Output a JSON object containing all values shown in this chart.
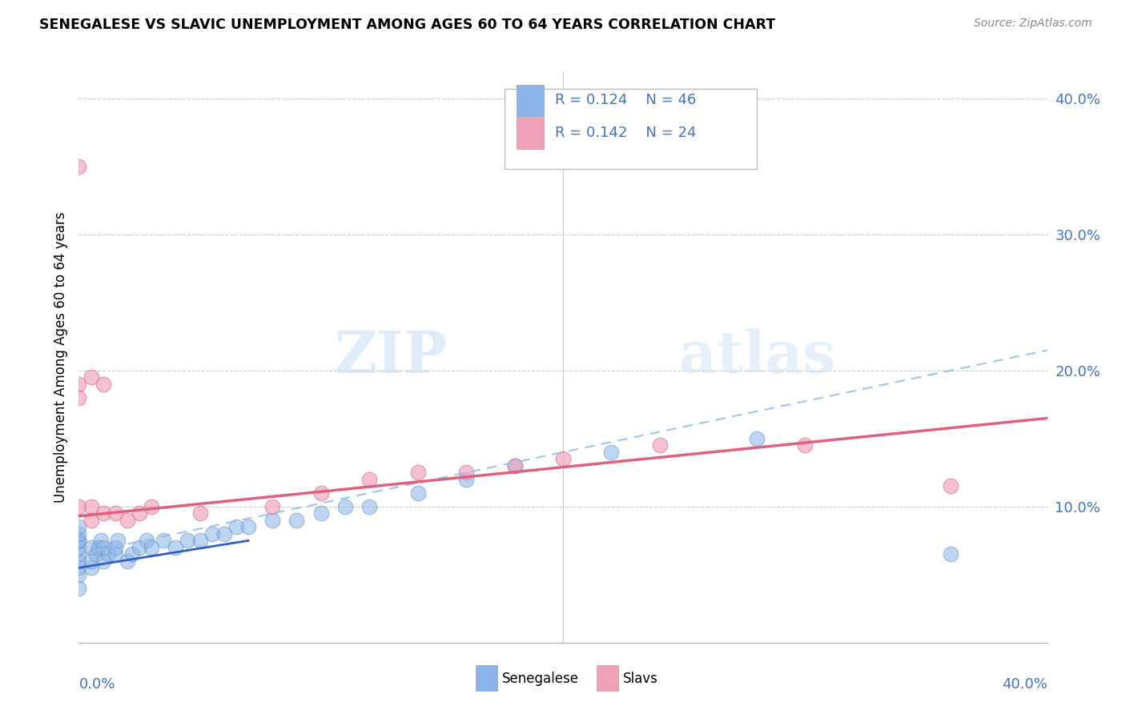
{
  "title": "SENEGALESE VS SLAVIC UNEMPLOYMENT AMONG AGES 60 TO 64 YEARS CORRELATION CHART",
  "source": "Source: ZipAtlas.com",
  "ylabel": "Unemployment Among Ages 60 to 64 years",
  "ytick_vals": [
    0.1,
    0.2,
    0.3,
    0.4
  ],
  "xlim": [
    0.0,
    0.4
  ],
  "ylim": [
    0.0,
    0.42
  ],
  "color_senegalese": "#8ab4e8",
  "color_slavs": "#f0a0b8",
  "color_line_senegalese_dashed": "#90c0e8",
  "color_line_slavs_solid": "#e06080",
  "color_line_senegalese_solid": "#3060c0",
  "color_text_blue": "#4472c4",
  "watermark_zip": "ZIP",
  "watermark_atlas": "atlas",
  "senegalese_x": [
    0.0,
    0.0,
    0.0,
    0.0,
    0.0,
    0.0,
    0.0,
    0.0,
    0.0,
    0.0,
    0.005,
    0.005,
    0.005,
    0.007,
    0.008,
    0.009,
    0.01,
    0.01,
    0.012,
    0.015,
    0.015,
    0.016,
    0.02,
    0.022,
    0.025,
    0.028,
    0.03,
    0.035,
    0.04,
    0.045,
    0.05,
    0.055,
    0.06,
    0.065,
    0.07,
    0.08,
    0.09,
    0.1,
    0.11,
    0.12,
    0.14,
    0.16,
    0.18,
    0.22,
    0.28,
    0.36
  ],
  "senegalese_y": [
    0.04,
    0.05,
    0.055,
    0.06,
    0.065,
    0.07,
    0.075,
    0.075,
    0.08,
    0.085,
    0.055,
    0.06,
    0.07,
    0.065,
    0.07,
    0.075,
    0.06,
    0.07,
    0.065,
    0.065,
    0.07,
    0.075,
    0.06,
    0.065,
    0.07,
    0.075,
    0.07,
    0.075,
    0.07,
    0.075,
    0.075,
    0.08,
    0.08,
    0.085,
    0.085,
    0.09,
    0.09,
    0.095,
    0.1,
    0.1,
    0.11,
    0.12,
    0.13,
    0.14,
    0.15,
    0.065
  ],
  "slavs_x": [
    0.0,
    0.0,
    0.0,
    0.0,
    0.005,
    0.005,
    0.01,
    0.015,
    0.02,
    0.025,
    0.03,
    0.05,
    0.08,
    0.1,
    0.12,
    0.14,
    0.16,
    0.18,
    0.2,
    0.24,
    0.3,
    0.36,
    0.005,
    0.01
  ],
  "slavs_y": [
    0.35,
    0.19,
    0.18,
    0.1,
    0.1,
    0.09,
    0.095,
    0.095,
    0.09,
    0.095,
    0.1,
    0.095,
    0.1,
    0.11,
    0.12,
    0.125,
    0.125,
    0.13,
    0.135,
    0.145,
    0.145,
    0.115,
    0.195,
    0.19
  ],
  "line_slav_x0": 0.0,
  "line_slav_y0": 0.093,
  "line_slav_x1": 0.4,
  "line_slav_y1": 0.165,
  "line_sene_dashed_x0": 0.0,
  "line_sene_dashed_y0": 0.065,
  "line_sene_dashed_x1": 0.4,
  "line_sene_dashed_y1": 0.215,
  "line_sene_solid_x0": 0.0,
  "line_sene_solid_y0": 0.055,
  "line_sene_solid_x1": 0.07,
  "line_sene_solid_y1": 0.075
}
